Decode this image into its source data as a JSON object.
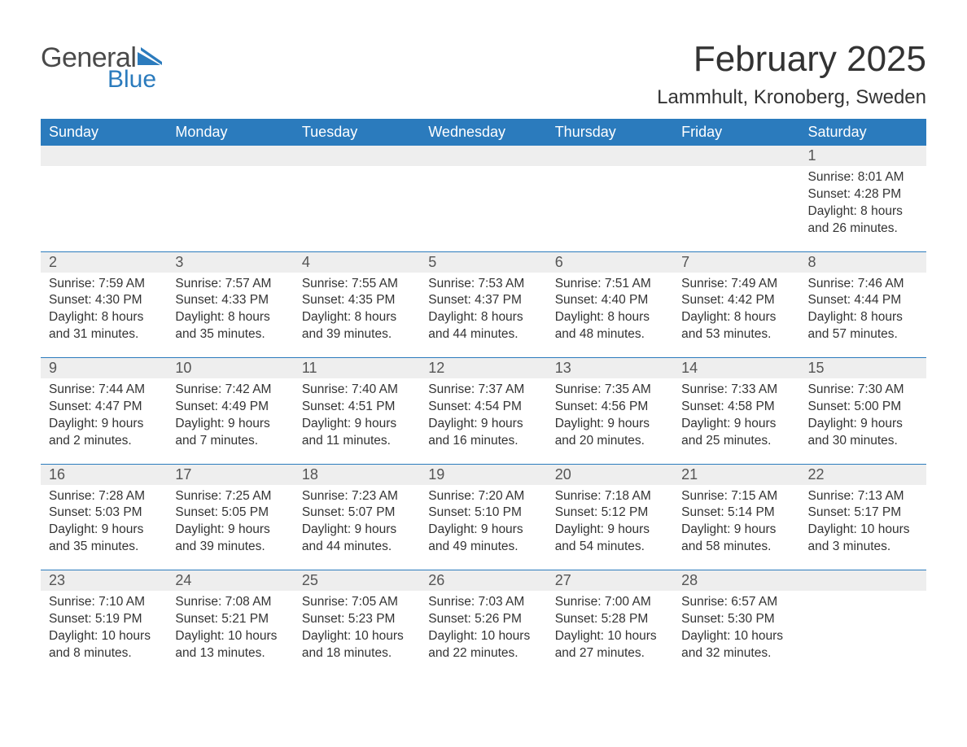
{
  "logo": {
    "text1": "General",
    "text2": "Blue",
    "flag_color": "#2b7bbd"
  },
  "title": "February 2025",
  "location": "Lammhult, Kronoberg, Sweden",
  "colors": {
    "header_bg": "#2b7bbd",
    "header_text": "#ffffff",
    "daynum_bg": "#eeeeee",
    "divider": "#2b7bbd",
    "body_text": "#333333",
    "page_bg": "#ffffff"
  },
  "weekdays": [
    "Sunday",
    "Monday",
    "Tuesday",
    "Wednesday",
    "Thursday",
    "Friday",
    "Saturday"
  ],
  "weeks": [
    [
      null,
      null,
      null,
      null,
      null,
      null,
      {
        "day": 1,
        "sunrise": "8:01 AM",
        "sunset": "4:28 PM",
        "daylight": "8 hours and 26 minutes."
      }
    ],
    [
      {
        "day": 2,
        "sunrise": "7:59 AM",
        "sunset": "4:30 PM",
        "daylight": "8 hours and 31 minutes."
      },
      {
        "day": 3,
        "sunrise": "7:57 AM",
        "sunset": "4:33 PM",
        "daylight": "8 hours and 35 minutes."
      },
      {
        "day": 4,
        "sunrise": "7:55 AM",
        "sunset": "4:35 PM",
        "daylight": "8 hours and 39 minutes."
      },
      {
        "day": 5,
        "sunrise": "7:53 AM",
        "sunset": "4:37 PM",
        "daylight": "8 hours and 44 minutes."
      },
      {
        "day": 6,
        "sunrise": "7:51 AM",
        "sunset": "4:40 PM",
        "daylight": "8 hours and 48 minutes."
      },
      {
        "day": 7,
        "sunrise": "7:49 AM",
        "sunset": "4:42 PM",
        "daylight": "8 hours and 53 minutes."
      },
      {
        "day": 8,
        "sunrise": "7:46 AM",
        "sunset": "4:44 PM",
        "daylight": "8 hours and 57 minutes."
      }
    ],
    [
      {
        "day": 9,
        "sunrise": "7:44 AM",
        "sunset": "4:47 PM",
        "daylight": "9 hours and 2 minutes."
      },
      {
        "day": 10,
        "sunrise": "7:42 AM",
        "sunset": "4:49 PM",
        "daylight": "9 hours and 7 minutes."
      },
      {
        "day": 11,
        "sunrise": "7:40 AM",
        "sunset": "4:51 PM",
        "daylight": "9 hours and 11 minutes."
      },
      {
        "day": 12,
        "sunrise": "7:37 AM",
        "sunset": "4:54 PM",
        "daylight": "9 hours and 16 minutes."
      },
      {
        "day": 13,
        "sunrise": "7:35 AM",
        "sunset": "4:56 PM",
        "daylight": "9 hours and 20 minutes."
      },
      {
        "day": 14,
        "sunrise": "7:33 AM",
        "sunset": "4:58 PM",
        "daylight": "9 hours and 25 minutes."
      },
      {
        "day": 15,
        "sunrise": "7:30 AM",
        "sunset": "5:00 PM",
        "daylight": "9 hours and 30 minutes."
      }
    ],
    [
      {
        "day": 16,
        "sunrise": "7:28 AM",
        "sunset": "5:03 PM",
        "daylight": "9 hours and 35 minutes."
      },
      {
        "day": 17,
        "sunrise": "7:25 AM",
        "sunset": "5:05 PM",
        "daylight": "9 hours and 39 minutes."
      },
      {
        "day": 18,
        "sunrise": "7:23 AM",
        "sunset": "5:07 PM",
        "daylight": "9 hours and 44 minutes."
      },
      {
        "day": 19,
        "sunrise": "7:20 AM",
        "sunset": "5:10 PM",
        "daylight": "9 hours and 49 minutes."
      },
      {
        "day": 20,
        "sunrise": "7:18 AM",
        "sunset": "5:12 PM",
        "daylight": "9 hours and 54 minutes."
      },
      {
        "day": 21,
        "sunrise": "7:15 AM",
        "sunset": "5:14 PM",
        "daylight": "9 hours and 58 minutes."
      },
      {
        "day": 22,
        "sunrise": "7:13 AM",
        "sunset": "5:17 PM",
        "daylight": "10 hours and 3 minutes."
      }
    ],
    [
      {
        "day": 23,
        "sunrise": "7:10 AM",
        "sunset": "5:19 PM",
        "daylight": "10 hours and 8 minutes."
      },
      {
        "day": 24,
        "sunrise": "7:08 AM",
        "sunset": "5:21 PM",
        "daylight": "10 hours and 13 minutes."
      },
      {
        "day": 25,
        "sunrise": "7:05 AM",
        "sunset": "5:23 PM",
        "daylight": "10 hours and 18 minutes."
      },
      {
        "day": 26,
        "sunrise": "7:03 AM",
        "sunset": "5:26 PM",
        "daylight": "10 hours and 22 minutes."
      },
      {
        "day": 27,
        "sunrise": "7:00 AM",
        "sunset": "5:28 PM",
        "daylight": "10 hours and 27 minutes."
      },
      {
        "day": 28,
        "sunrise": "6:57 AM",
        "sunset": "5:30 PM",
        "daylight": "10 hours and 32 minutes."
      },
      null
    ]
  ],
  "labels": {
    "sunrise": "Sunrise: ",
    "sunset": "Sunset: ",
    "daylight": "Daylight: "
  }
}
